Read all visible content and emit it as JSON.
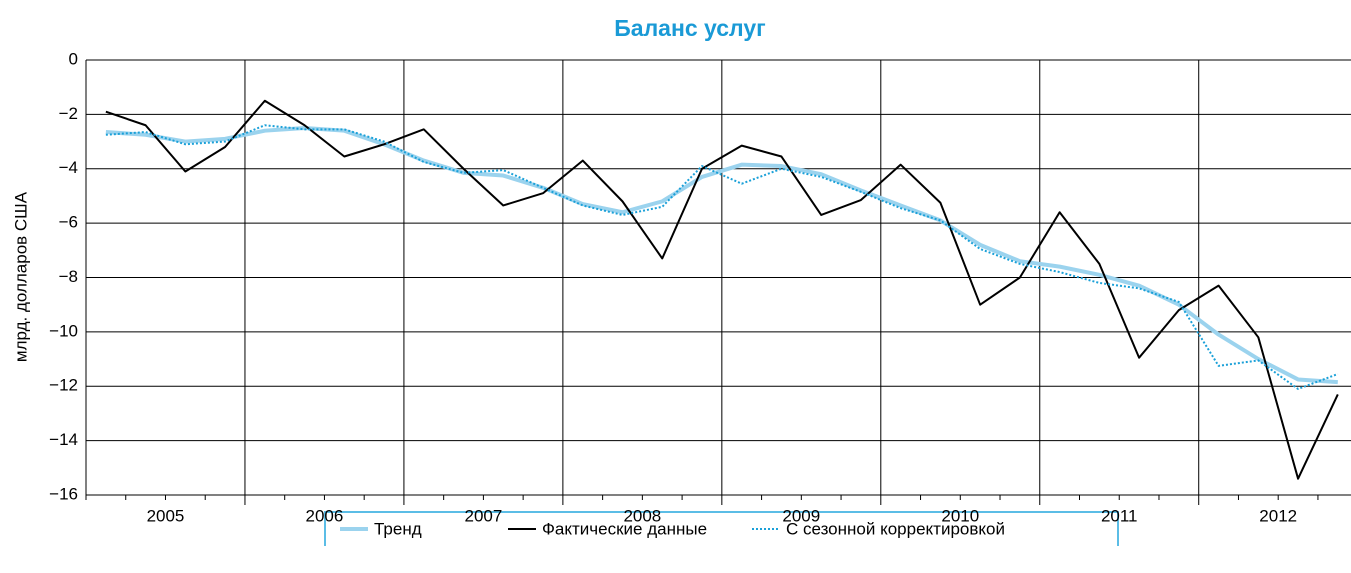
{
  "chart_data": {
    "type": "line",
    "title": "Баланс услуг",
    "y_label": "млрд. долларов США",
    "categories": [
      "2005",
      null,
      null,
      null,
      "2006",
      null,
      null,
      null,
      "2007",
      null,
      null,
      null,
      "2008",
      null,
      null,
      null,
      "2009",
      null,
      null,
      null,
      "2010",
      null,
      null,
      null,
      "2011",
      null,
      null,
      null,
      "2012",
      null,
      null,
      null
    ],
    "series": [
      {
        "name": "Тренд",
        "color": "#9bd3ee",
        "style": "thick",
        "values": [
          -2.65,
          -2.75,
          -3.0,
          -2.9,
          -2.6,
          -2.5,
          -2.6,
          -3.1,
          -3.7,
          -4.15,
          -4.25,
          -4.7,
          -5.3,
          -5.6,
          -5.2,
          -4.3,
          -3.85,
          -3.9,
          -4.2,
          -4.8,
          -5.35,
          -5.9,
          -6.8,
          -7.4,
          -7.6,
          -7.9,
          -8.3,
          -9.0,
          -10.1,
          -11.0,
          -11.75,
          -11.85
        ]
      },
      {
        "name": "Фактические данные",
        "color": "#000000",
        "style": "solid",
        "values": [
          -1.9,
          -2.4,
          -4.1,
          -3.2,
          -1.5,
          -2.4,
          -3.55,
          -3.1,
          -2.55,
          -4.0,
          -5.35,
          -4.9,
          -3.7,
          -5.2,
          -7.3,
          -4.0,
          -3.15,
          -3.55,
          -5.7,
          -5.15,
          -3.85,
          -5.25,
          -9.0,
          -8.0,
          -5.6,
          -7.5,
          -10.95,
          -9.2,
          -8.3,
          -10.2,
          -15.4,
          -12.3
        ]
      },
      {
        "name": "С сезонной корректировкой",
        "color": "#1aa0d8",
        "style": "dotted",
        "values": [
          -2.75,
          -2.65,
          -3.1,
          -3.0,
          -2.4,
          -2.55,
          -2.55,
          -3.0,
          -3.75,
          -4.15,
          -4.05,
          -4.7,
          -5.35,
          -5.7,
          -5.4,
          -3.9,
          -4.55,
          -4.0,
          -4.3,
          -4.85,
          -5.45,
          -5.9,
          -6.95,
          -7.5,
          -7.8,
          -8.2,
          -8.4,
          -8.9,
          -11.25,
          -11.05,
          -12.1,
          -11.55
        ]
      }
    ],
    "ylim": [
      -16,
      0
    ],
    "yticks": [
      0,
      {
        "value": -2,
        "label": "−2"
      },
      {
        "value": -4,
        "label": "−4"
      },
      {
        "value": -6,
        "label": "−6"
      },
      {
        "value": -8,
        "label": "−8"
      },
      {
        "value": -10,
        "label": "−10"
      },
      {
        "value": -12,
        "label": "−12"
      },
      {
        "value": -14,
        "label": "−14"
      },
      {
        "value": -16,
        "label": "−16"
      }
    ],
    "grid": true,
    "legend": "bottom"
  }
}
